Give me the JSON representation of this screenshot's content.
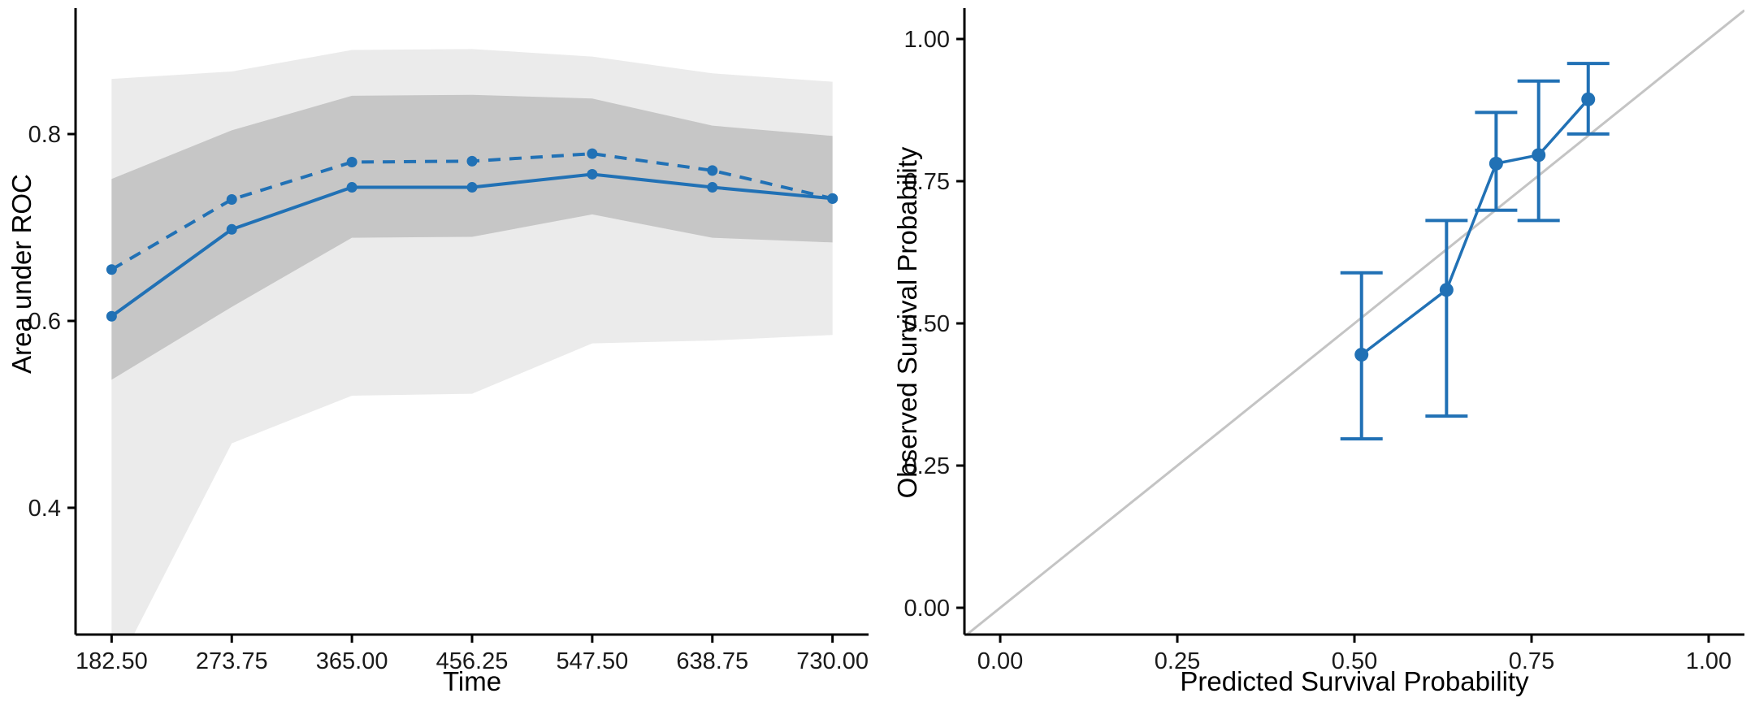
{
  "figure": {
    "background": "#ffffff",
    "accent_blue": "#2171b5",
    "axis_color": "#000000"
  },
  "chart_data": [
    {
      "type": "line",
      "name": "time-dependent-auc",
      "xlabel": "Time",
      "ylabel": "Area under ROC",
      "x": [
        182.5,
        273.75,
        365.0,
        456.25,
        547.5,
        638.75,
        730.0
      ],
      "x_tick_labels": [
        "182.50",
        "273.75",
        "365.00",
        "456.25",
        "547.50",
        "638.75",
        "730.00"
      ],
      "y_ticks": [
        0.4,
        0.6,
        0.8
      ],
      "y_tick_labels": [
        "0.4",
        "0.6",
        "0.8"
      ],
      "xlim": [
        155.125,
        757.375
      ],
      "ylim": [
        0.2643,
        0.9348
      ],
      "grid": false,
      "legend": "none",
      "line_color": "#2171b5",
      "series": [
        {
          "name": "auc-upper-dashed",
          "style": "dashed",
          "values": [
            0.655,
            0.73,
            0.77,
            0.771,
            0.779,
            0.761,
            0.731
          ]
        },
        {
          "name": "auc-lower-solid",
          "style": "solid",
          "values": [
            0.605,
            0.698,
            0.743,
            0.743,
            0.757,
            0.743,
            0.731
          ]
        }
      ],
      "bands": [
        {
          "name": "outer-confidence-band",
          "color": "#ebebeb",
          "upper": [
            0.859,
            0.867,
            0.89,
            0.891,
            0.883,
            0.865,
            0.856
          ],
          "lower": [
            0.218,
            0.469,
            0.52,
            0.522,
            0.576,
            0.579,
            0.585
          ]
        },
        {
          "name": "inner-confidence-band",
          "color": "#c6c6c6",
          "upper": [
            0.752,
            0.804,
            0.841,
            0.842,
            0.838,
            0.809,
            0.798
          ],
          "lower": [
            0.537,
            0.615,
            0.689,
            0.69,
            0.714,
            0.689,
            0.684
          ]
        }
      ]
    },
    {
      "type": "scatter",
      "name": "survival-calibration",
      "xlabel": "Predicted Survival Probability",
      "ylabel": "Observed Survival Probability",
      "x_ticks": [
        0,
        0.25,
        0.5,
        0.75,
        1
      ],
      "x_tick_labels": [
        "0.00",
        "0.25",
        "0.50",
        "0.75",
        "1.00"
      ],
      "y_ticks": [
        0,
        0.25,
        0.5,
        0.75,
        1
      ],
      "y_tick_labels": [
        "0.00",
        "0.25",
        "0.50",
        "0.75",
        "1.00"
      ],
      "xlim": [
        -0.0505,
        1.0505
      ],
      "ylim": [
        -0.0471,
        1.0543
      ],
      "grid": false,
      "legend": "none",
      "identity_line": true,
      "identity_color": "#c4c4c4",
      "point_color": "#2171b5",
      "points": [
        {
          "x": 0.51,
          "y": 0.445,
          "ci_low": 0.297,
          "ci_high": 0.589
        },
        {
          "x": 0.63,
          "y": 0.559,
          "ci_low": 0.337,
          "ci_high": 0.681
        },
        {
          "x": 0.7,
          "y": 0.781,
          "ci_low": 0.699,
          "ci_high": 0.871
        },
        {
          "x": 0.76,
          "y": 0.796,
          "ci_low": 0.681,
          "ci_high": 0.926
        },
        {
          "x": 0.83,
          "y": 0.894,
          "ci_low": 0.833,
          "ci_high": 0.957
        }
      ]
    }
  ]
}
